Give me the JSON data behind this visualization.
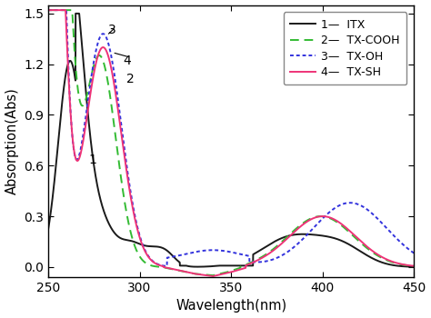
{
  "title": "",
  "xlabel": "Wavelength(nm)",
  "ylabel": "Absorption(Abs)",
  "xlim": [
    250,
    450
  ],
  "ylim": [
    -0.06,
    1.55
  ],
  "yticks": [
    0.0,
    0.3,
    0.6,
    0.9,
    1.2,
    1.5
  ],
  "xticks": [
    250,
    300,
    350,
    400,
    450
  ],
  "itx_color": "#1a1a1a",
  "txcooh_color": "#33bb33",
  "txoh_color": "#3333dd",
  "txsh_color": "#ee3377",
  "background_color": "#ffffff"
}
